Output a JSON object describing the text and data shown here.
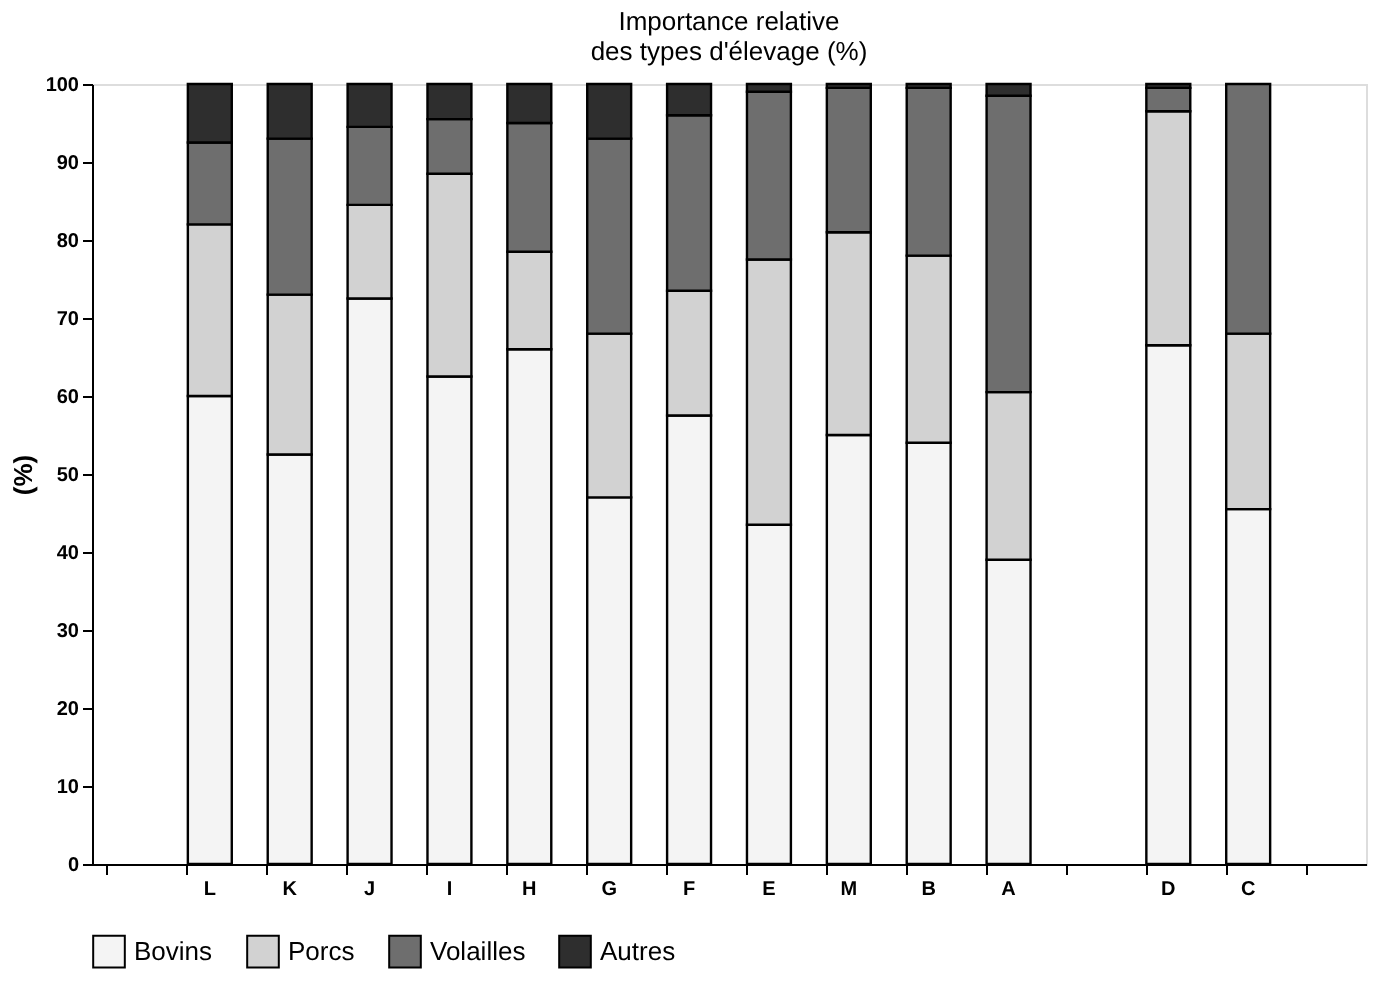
{
  "chart_data": {
    "type": "bar",
    "stacked": true,
    "title": "Importance relative\ndes types d'élevage (%)",
    "ylabel": "(%)",
    "categories": [
      null,
      "L",
      "K",
      "J",
      "I",
      "H",
      "G",
      "F",
      "E",
      "M",
      "B",
      "A",
      null,
      "D",
      "C",
      null
    ],
    "series": [
      {
        "name": "Bovins",
        "color": "#f4f4f4",
        "values": [
          null,
          60,
          52.5,
          72.5,
          62.5,
          66,
          47,
          57.5,
          43.5,
          55,
          54,
          39,
          null,
          66.5,
          45.5,
          null
        ]
      },
      {
        "name": "Porcs",
        "color": "#d2d2d2",
        "values": [
          null,
          22,
          20.5,
          12,
          26,
          12.5,
          21,
          16,
          34,
          26,
          24,
          21.5,
          null,
          30,
          22.5,
          null
        ]
      },
      {
        "name": "Volailles",
        "color": "#6e6e6e",
        "values": [
          null,
          10.5,
          20,
          10,
          7,
          16.5,
          25,
          22.5,
          21.5,
          18.5,
          21.5,
          38,
          null,
          3,
          32,
          null
        ]
      },
      {
        "name": "Autres",
        "color": "#2e2e2e",
        "values": [
          null,
          7.5,
          7,
          5.5,
          4.5,
          5,
          7,
          4,
          1,
          0.5,
          0.5,
          1.5,
          null,
          0.5,
          null,
          null
        ]
      }
    ],
    "ylim": [
      0,
      100
    ],
    "yticks": [
      0,
      10,
      20,
      30,
      40,
      50,
      60,
      70,
      80,
      90,
      100
    ],
    "grid": false,
    "legend": "bottom"
  }
}
